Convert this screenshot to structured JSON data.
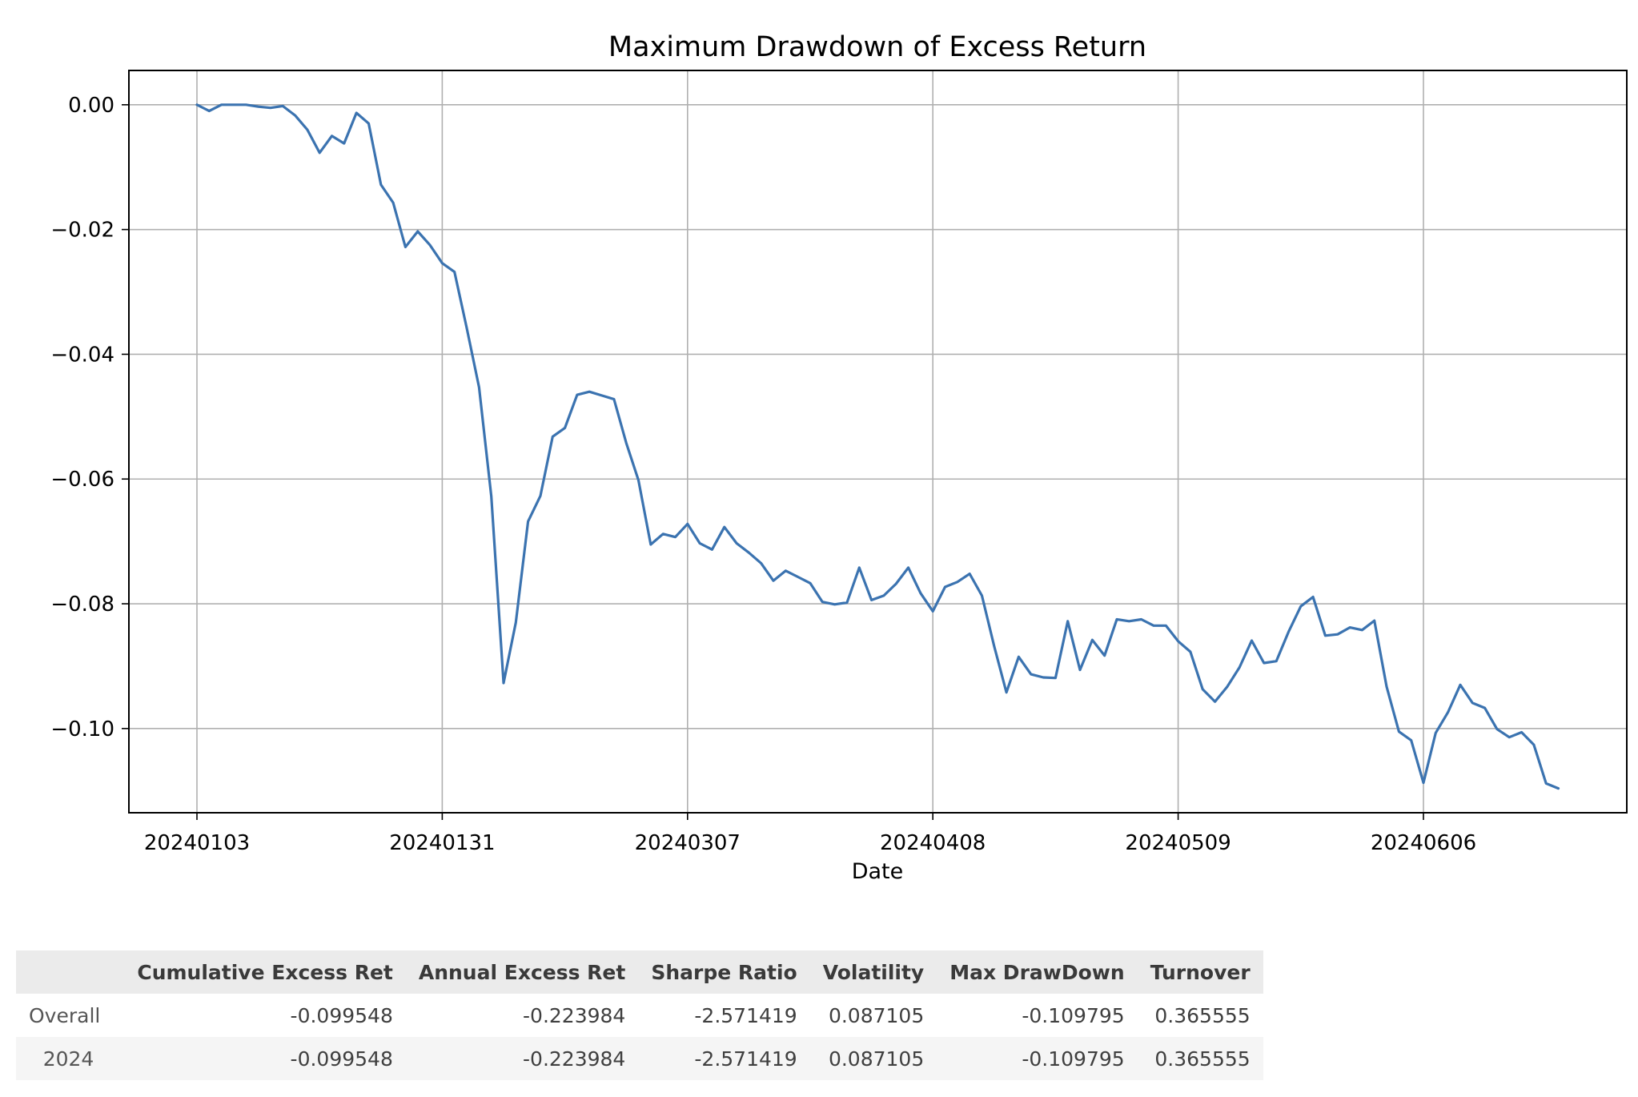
{
  "chart_data": {
    "type": "line",
    "title": "Maximum Drawdown of Excess Return",
    "xlabel": "Date",
    "ylabel": "",
    "grid": true,
    "ylim": [
      -0.1135,
      0.0055
    ],
    "x_ticks": [
      "20240103",
      "20240131",
      "20240307",
      "20240408",
      "20240509",
      "20240606"
    ],
    "y_ticks": [
      0.0,
      -0.02,
      -0.04,
      -0.06,
      -0.08,
      -0.1
    ],
    "y_tick_labels": [
      "0.00",
      "−0.02",
      "−0.04",
      "−0.06",
      "−0.08",
      "−0.10"
    ],
    "series": [
      {
        "color": "#3b73b0",
        "values": [
          0.0,
          -0.001,
          0.0,
          0.0,
          0.0,
          -0.0003,
          -0.0005,
          -0.0002,
          -0.0017,
          -0.004,
          -0.0077,
          -0.005,
          -0.0062,
          -0.0013,
          -0.003,
          -0.0128,
          -0.0157,
          -0.0228,
          -0.0203,
          -0.0225,
          -0.0254,
          -0.0268,
          -0.0358,
          -0.0453,
          -0.0628,
          -0.0927,
          -0.083,
          -0.0668,
          -0.0627,
          -0.0532,
          -0.0518,
          -0.0465,
          -0.046,
          -0.0466,
          -0.0472,
          -0.0542,
          -0.0602,
          -0.0705,
          -0.0688,
          -0.0693,
          -0.0672,
          -0.0703,
          -0.0713,
          -0.0677,
          -0.0703,
          -0.0718,
          -0.0735,
          -0.0763,
          -0.0747,
          -0.0757,
          -0.0767,
          -0.0797,
          -0.0801,
          -0.0798,
          -0.0742,
          -0.0794,
          -0.0787,
          -0.0768,
          -0.0742,
          -0.0783,
          -0.0812,
          -0.0773,
          -0.0765,
          -0.0752,
          -0.0787,
          -0.0868,
          -0.0942,
          -0.0885,
          -0.0913,
          -0.0918,
          -0.0919,
          -0.0828,
          -0.0906,
          -0.0858,
          -0.0883,
          -0.0825,
          -0.0828,
          -0.0825,
          -0.0835,
          -0.0835,
          -0.086,
          -0.0877,
          -0.0937,
          -0.0957,
          -0.0933,
          -0.0902,
          -0.0859,
          -0.0895,
          -0.0892,
          -0.0845,
          -0.0804,
          -0.0789,
          -0.0851,
          -0.0849,
          -0.0838,
          -0.0842,
          -0.0827,
          -0.0933,
          -0.1005,
          -0.1019,
          -0.1087,
          -0.1007,
          -0.0974,
          -0.093,
          -0.0959,
          -0.0967,
          -0.1001,
          -0.1014,
          -0.1006,
          -0.1026,
          -0.1088,
          -0.1096
        ]
      }
    ]
  },
  "table": {
    "columns": [
      "",
      "Cumulative Excess Ret",
      "Annual Excess Ret",
      "Sharpe Ratio",
      "Volatility",
      "Max DrawDown",
      "Turnover"
    ],
    "rows": [
      {
        "label": "Overall",
        "cells": [
          "-0.099548",
          "-0.223984",
          "-2.571419",
          "0.087105",
          "-0.109795",
          "0.365555"
        ]
      },
      {
        "label": "2024",
        "cells": [
          "-0.099548",
          "-0.223984",
          "-2.571419",
          "0.087105",
          "-0.109795",
          "0.365555"
        ]
      }
    ]
  }
}
